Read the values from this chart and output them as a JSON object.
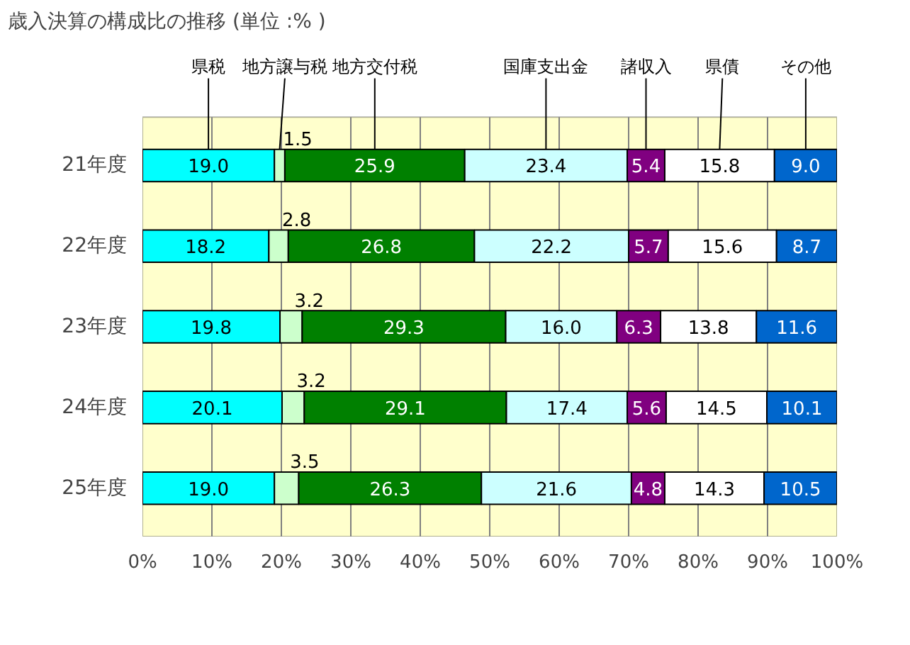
{
  "chart_data": {
    "type": "bar",
    "orientation": "horizontal",
    "stacked": true,
    "title": "歳入決算の構成比の推移 (単位 :% )",
    "categories": [
      "21年度",
      "22年度",
      "23年度",
      "24年度",
      "25年度"
    ],
    "series": [
      {
        "name": "県税",
        "color": "#00ffff",
        "values": [
          19.0,
          18.2,
          19.8,
          20.1,
          19.0
        ],
        "value_labels": [
          "19.0",
          "18.2",
          "19.8",
          "20.1",
          "19.0"
        ]
      },
      {
        "name": "地方譲与税",
        "color": "#ccffcc",
        "values": [
          1.5,
          2.8,
          3.2,
          3.2,
          3.5
        ],
        "value_labels": [
          "1.5",
          "2.8",
          "3.2",
          "3.2",
          "3.5"
        ]
      },
      {
        "name": "地方交付税",
        "color": "#008000",
        "values": [
          25.9,
          26.8,
          29.3,
          29.1,
          26.3
        ],
        "value_labels": [
          "25.9",
          "26.8",
          "29.3",
          "29.1",
          "26.3"
        ]
      },
      {
        "name": "国庫支出金",
        "color": "#ccffff",
        "values": [
          23.4,
          22.2,
          16.0,
          17.4,
          21.6
        ],
        "value_labels": [
          "23.4",
          "22.2",
          "16.0",
          "17.4",
          "21.6"
        ]
      },
      {
        "name": "諸収入",
        "color": "#800080",
        "values": [
          5.4,
          5.7,
          6.3,
          5.6,
          4.8
        ],
        "value_labels": [
          "5.4",
          "5.7",
          "6.3",
          "5.6",
          "4.8"
        ]
      },
      {
        "name": "県債",
        "color": "#ffffff",
        "values": [
          15.8,
          15.6,
          13.8,
          14.5,
          14.3
        ],
        "value_labels": [
          "15.8",
          "15.6",
          "13.8",
          "14.5",
          "14.3"
        ]
      },
      {
        "name": "その他",
        "color": "#0066cc",
        "values": [
          9.0,
          8.7,
          11.6,
          10.1,
          10.5
        ],
        "value_labels": [
          "9.0",
          "8.7",
          "11.6",
          "10.1",
          "10.5"
        ]
      }
    ],
    "xlim": [
      0,
      100
    ],
    "xticks": [
      {
        "value": 0,
        "label": "0%"
      },
      {
        "value": 10,
        "label": "10%"
      },
      {
        "value": 20,
        "label": "20%"
      },
      {
        "value": 30,
        "label": "30%"
      },
      {
        "value": 40,
        "label": "40%"
      },
      {
        "value": 50,
        "label": "50%"
      },
      {
        "value": 60,
        "label": "60%"
      },
      {
        "value": 70,
        "label": "70%"
      },
      {
        "value": 80,
        "label": "80%"
      },
      {
        "value": 90,
        "label": "90%"
      },
      {
        "value": 100,
        "label": "100%"
      }
    ],
    "grid": "x"
  }
}
